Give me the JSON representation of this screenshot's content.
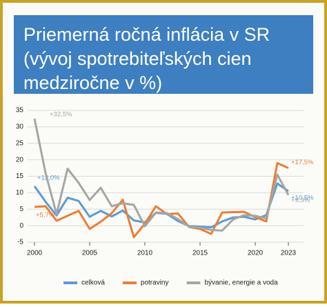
{
  "chart_data": {
    "type": "line",
    "title_lines": [
      "Priemerná ročná inflácia v SR",
      "(vývoj spotrebiteľských cien",
      "medziročne v %)"
    ],
    "x": [
      2000,
      2001,
      2002,
      2003,
      2004,
      2005,
      2006,
      2007,
      2008,
      2009,
      2010,
      2011,
      2012,
      2013,
      2014,
      2015,
      2016,
      2017,
      2018,
      2019,
      2020,
      2021,
      2022,
      2023
    ],
    "xlim": [
      2000,
      2023
    ],
    "xticks": [
      2000,
      2005,
      2010,
      2015,
      2020,
      2023
    ],
    "ylim": [
      -5,
      35
    ],
    "yticks": [
      -5,
      0,
      5,
      10,
      15,
      20,
      25,
      30,
      35
    ],
    "grid": true,
    "series": [
      {
        "name": "celková",
        "color": "#5b9bd5",
        "values": [
          12.0,
          7.3,
          3.1,
          8.5,
          7.5,
          2.7,
          4.5,
          2.8,
          4.6,
          1.6,
          1.0,
          3.9,
          3.6,
          1.4,
          -0.1,
          -0.3,
          -0.5,
          1.3,
          2.5,
          2.7,
          1.9,
          3.2,
          12.8,
          10.5
        ],
        "value_labels": [
          "+12,0%",
          null,
          null,
          null,
          null,
          null,
          null,
          null,
          null,
          null,
          null,
          null,
          null,
          null,
          null,
          null,
          null,
          null,
          null,
          null,
          null,
          null,
          null,
          "+10,5%"
        ]
      },
      {
        "name": "potraviny",
        "color": "#ed7d31",
        "values": [
          5.7,
          5.9,
          1.5,
          3.0,
          4.5,
          -1.0,
          1.2,
          3.8,
          7.9,
          -3.5,
          0.6,
          5.9,
          3.5,
          3.7,
          -0.4,
          -1.0,
          -2.5,
          4.0,
          4.1,
          4.2,
          2.6,
          1.3,
          19.0,
          17.5
        ],
        "value_labels": [
          "+5,7%",
          null,
          null,
          null,
          null,
          null,
          null,
          null,
          null,
          null,
          null,
          null,
          null,
          null,
          null,
          null,
          null,
          null,
          null,
          null,
          null,
          null,
          null,
          "+17,5%"
        ]
      },
      {
        "name": "bývanie, energie a voda",
        "color": "#a5a5a5",
        "values": [
          32.5,
          16.0,
          3.5,
          17.3,
          13.0,
          7.8,
          11.5,
          5.9,
          6.8,
          6.3,
          -0.2,
          4.0,
          3.8,
          2.0,
          -0.3,
          -0.6,
          -1.3,
          -1.5,
          1.9,
          3.2,
          3.0,
          2.2,
          15.5,
          9.3
        ],
        "value_labels": [
          "+32,5%",
          null,
          null,
          null,
          null,
          null,
          null,
          null,
          null,
          null,
          null,
          null,
          null,
          null,
          null,
          null,
          null,
          null,
          null,
          null,
          null,
          null,
          null,
          "+9,3%"
        ]
      }
    ]
  }
}
